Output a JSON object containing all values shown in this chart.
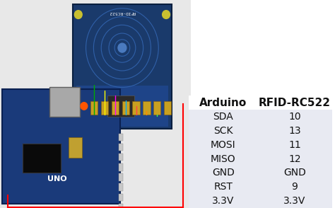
{
  "title_col1": "Arduino",
  "title_col2": "RFID-RC522",
  "rows": [
    [
      "SDA",
      "10"
    ],
    [
      "SCK",
      "13"
    ],
    [
      "MOSI",
      "11"
    ],
    [
      "MISO",
      "12"
    ],
    [
      "GND",
      "GND"
    ],
    [
      "RST",
      "9"
    ],
    [
      "3.3V",
      "3.3V"
    ]
  ],
  "header_bg": "#ffffff",
  "row_bg": "#e8eaf2",
  "font_size": 10,
  "header_font_size": 11,
  "bg_color": "#ffffff",
  "fig_width": 4.74,
  "fig_height": 2.94,
  "dpi": 100,
  "arduino_color": "#1a3a7a",
  "arduino_edge": "#0a2050",
  "rfid_color": "#1a3a6b",
  "rfid_edge": "#0a1f3f",
  "wire_colors": [
    "#00aa00",
    "#ffff00",
    "#ff00ff",
    "#00aaff",
    "#ff4444",
    "#ff8800",
    "#44ff44"
  ],
  "bg_left": "#e8e8e8"
}
